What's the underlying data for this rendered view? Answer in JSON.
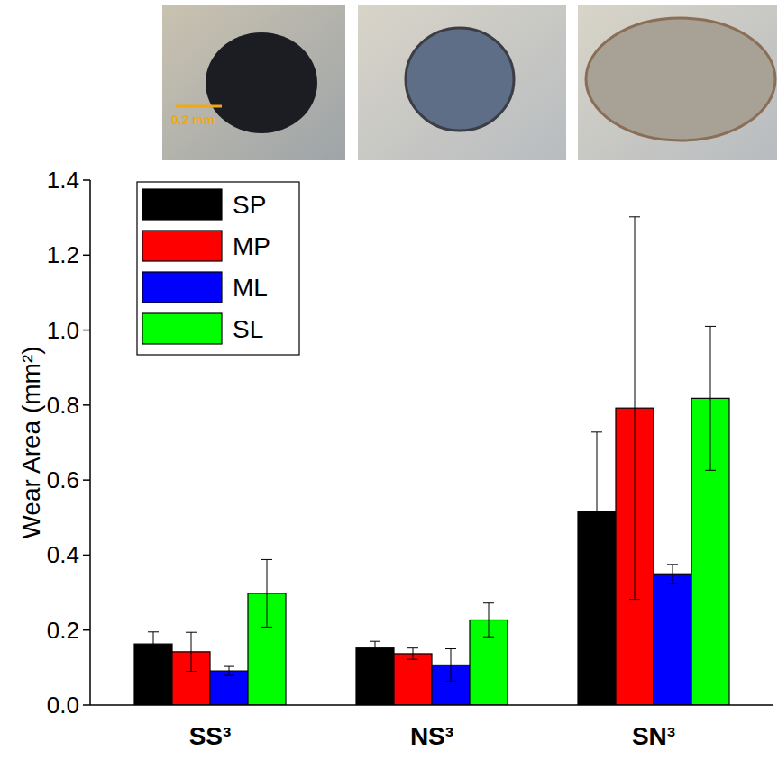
{
  "chart_data": {
    "type": "bar",
    "y_label": "Wear Area (mm²)",
    "annotations": [
      "0.2 mm"
    ],
    "categories": [
      "SS³",
      "NS³",
      "SN³"
    ],
    "series": [
      {
        "name": "SP",
        "color": "#000000",
        "values": [
          0.163,
          0.152,
          0.515
        ],
        "errors": [
          0.032,
          0.018,
          0.213
        ]
      },
      {
        "name": "MP",
        "color": "#ff0000",
        "values": [
          0.142,
          0.137,
          0.792
        ],
        "errors": [
          0.052,
          0.015,
          0.51
        ]
      },
      {
        "name": "ML",
        "color": "#0000ff",
        "values": [
          0.091,
          0.107,
          0.35
        ],
        "errors": [
          0.012,
          0.043,
          0.025
        ]
      },
      {
        "name": "SL",
        "color": "#00ff00",
        "values": [
          0.298,
          0.227,
          0.818
        ],
        "errors": [
          0.09,
          0.045,
          0.192
        ]
      }
    ],
    "ylim": [
      0,
      1.4
    ],
    "yticks": [
      {
        "value": 0,
        "label": "0.0"
      },
      0.2,
      0.4,
      0.6,
      0.8,
      {
        "value": 1,
        "label": "1.0"
      },
      1.2,
      1.4
    ],
    "legend": "top-left",
    "grid": false
  }
}
